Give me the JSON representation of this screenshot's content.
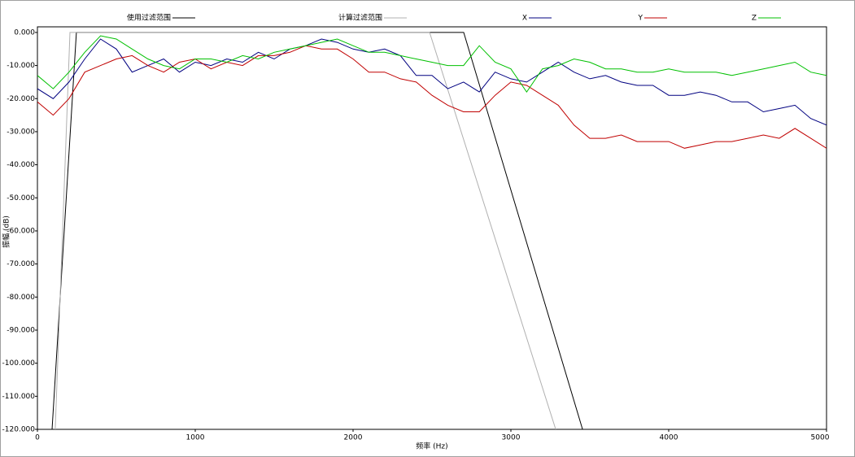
{
  "chart_data": {
    "type": "line",
    "xlabel": "频率 (Hz)",
    "ylabel": "振幅 (dB)",
    "xlim": [
      0,
      5000
    ],
    "ylim": [
      -120,
      1.7
    ],
    "xticks": [
      0,
      1000,
      2000,
      3000,
      4000,
      5000
    ],
    "yticks": [
      {
        "value": 0,
        "label": "0.000"
      },
      {
        "value": -10,
        "label": "-10.000"
      },
      {
        "value": -20,
        "label": "-20.000"
      },
      {
        "value": -30,
        "label": "-30.000"
      },
      {
        "value": -40,
        "label": "-40.000"
      },
      {
        "value": -50,
        "label": "-50.000"
      },
      {
        "value": -60,
        "label": "-60.000"
      },
      {
        "value": -70,
        "label": "-70.000"
      },
      {
        "value": -80,
        "label": "-80.000"
      },
      {
        "value": -90,
        "label": "-90.000"
      },
      {
        "value": -100,
        "label": "-100.000"
      },
      {
        "value": -110,
        "label": "-110.000"
      },
      {
        "value": -120,
        "label": "-120.000"
      }
    ],
    "x": [
      0,
      100,
      200,
      300,
      400,
      500,
      600,
      700,
      800,
      900,
      1000,
      1100,
      1200,
      1300,
      1400,
      1500,
      1600,
      1700,
      1800,
      1900,
      2000,
      2100,
      2200,
      2300,
      2400,
      2500,
      2600,
      2700,
      2800,
      2900,
      3000,
      3100,
      3200,
      3300,
      3400,
      3500,
      3600,
      3700,
      3800,
      3900,
      4000,
      4100,
      4200,
      4300,
      4400,
      4500,
      4600,
      4700,
      4800,
      4900,
      5000
    ],
    "series": [
      {
        "name": "使用过滤范围",
        "color": "#000000",
        "x": [
          93,
          247,
          2701,
          3454
        ],
        "values": [
          -120,
          0,
          0,
          -120
        ]
      },
      {
        "name": "计算过滤范围",
        "color": "#b0b0b0",
        "x": [
          113,
          206,
          2485,
          3284
        ],
        "values": [
          -120,
          0,
          0,
          -120
        ]
      },
      {
        "name": "X",
        "color": "#000080",
        "values": [
          -17,
          -20,
          -15,
          -8,
          -2,
          -5,
          -12,
          -10,
          -8,
          -12,
          -9,
          -10,
          -8,
          -9,
          -6,
          -8,
          -5,
          -4,
          -2,
          -3,
          -5,
          -6,
          -5,
          -7,
          -13,
          -13,
          -17,
          -15,
          -18,
          -12,
          -14,
          -15,
          -12,
          -9,
          -12,
          -14,
          -13,
          -15,
          -16,
          -16,
          -19,
          -19,
          -18,
          -19,
          -21,
          -21,
          -24,
          -23,
          -22,
          -26,
          -28
        ]
      },
      {
        "name": "Y",
        "color": "#c00000",
        "values": [
          -21,
          -25,
          -20,
          -12,
          -10,
          -8,
          -7,
          -10,
          -12,
          -9,
          -8,
          -11,
          -9,
          -10,
          -7,
          -7,
          -6,
          -4,
          -5,
          -5,
          -8,
          -12,
          -12,
          -14,
          -15,
          -19,
          -22,
          -24,
          -24,
          -19,
          -15,
          -16,
          -19,
          -22,
          -28,
          -32,
          -32,
          -31,
          -33,
          -33,
          -33,
          -35,
          -34,
          -33,
          -33,
          -32,
          -31,
          -32,
          -29,
          -32,
          -35
        ]
      },
      {
        "name": "Z",
        "color": "#00c000",
        "values": [
          -13,
          -17,
          -12,
          -6,
          -1,
          -2,
          -5,
          -8,
          -10,
          -11,
          -8,
          -8,
          -9,
          -7,
          -8,
          -6,
          -5,
          -4,
          -3,
          -2,
          -4,
          -6,
          -6,
          -7,
          -8,
          -9,
          -10,
          -10,
          -4,
          -9,
          -11,
          -18,
          -11,
          -10,
          -8,
          -9,
          -11,
          -11,
          -12,
          -12,
          -11,
          -12,
          -12,
          -12,
          -13,
          -12,
          -11,
          -10,
          -9,
          -12,
          -13
        ]
      }
    ]
  }
}
